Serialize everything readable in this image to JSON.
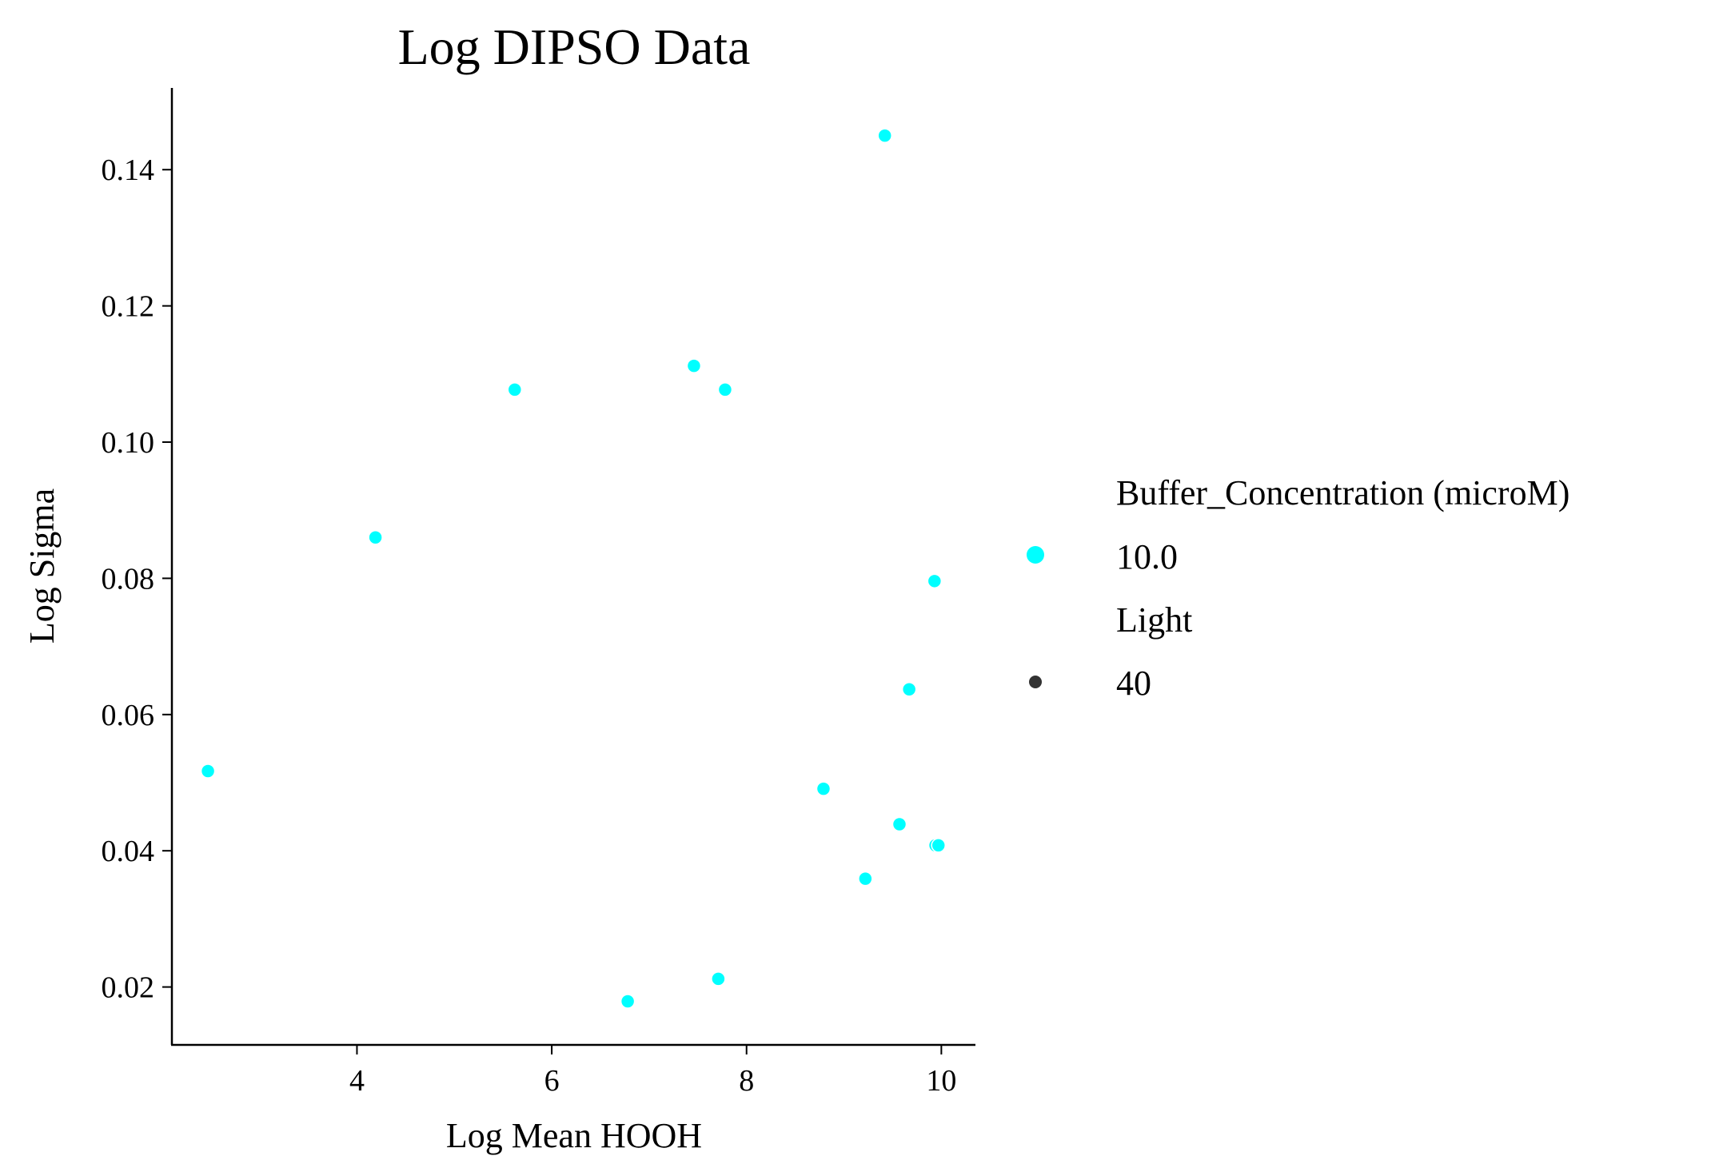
{
  "chart_data": {
    "type": "scatter",
    "title": "Log DIPSO Data",
    "xlabel": "Log Mean HOOH",
    "ylabel": "Log Sigma",
    "xlim": [
      2.1,
      10.35
    ],
    "ylim": [
      0.0115,
      0.152
    ],
    "xticks": [
      "4",
      "6",
      "8",
      "10"
    ],
    "yticks": [
      "0.02",
      "0.04",
      "0.06",
      "0.08",
      "0.10",
      "0.12",
      "0.14"
    ],
    "grid": false,
    "legend_placement": "right",
    "point_color": "#00ffff",
    "size_marker_color": "#333333",
    "legend": {
      "hue_title": "Buffer_Concentration (microM)",
      "hue_entries": [
        "10.0"
      ],
      "size_title": "Light",
      "size_entries": [
        "40"
      ]
    },
    "points": [
      {
        "x": 2.47,
        "y": 0.0517
      },
      {
        "x": 4.19,
        "y": 0.086
      },
      {
        "x": 5.62,
        "y": 0.1077
      },
      {
        "x": 6.78,
        "y": 0.0179
      },
      {
        "x": 7.46,
        "y": 0.1112
      },
      {
        "x": 7.71,
        "y": 0.0212
      },
      {
        "x": 7.78,
        "y": 0.1077
      },
      {
        "x": 8.79,
        "y": 0.0491
      },
      {
        "x": 9.22,
        "y": 0.0359
      },
      {
        "x": 9.42,
        "y": 0.145
      },
      {
        "x": 9.57,
        "y": 0.0439
      },
      {
        "x": 9.67,
        "y": 0.0637
      },
      {
        "x": 9.93,
        "y": 0.0796
      },
      {
        "x": 9.94,
        "y": 0.0408
      },
      {
        "x": 9.97,
        "y": 0.0408
      }
    ]
  }
}
